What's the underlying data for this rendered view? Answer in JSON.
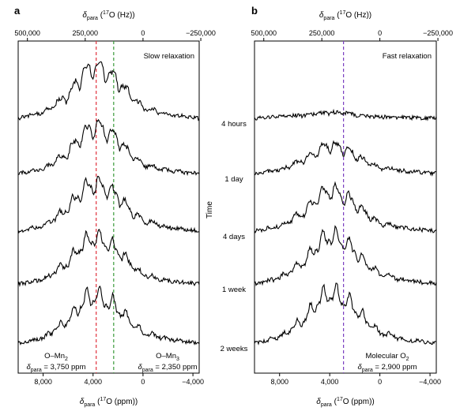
{
  "chart_data": [
    {
      "panel": "a",
      "type": "line",
      "title": "",
      "annotation": "Slow relaxation",
      "xlabel_bottom": {
        "main": "δ",
        "sub": "para",
        "sup": "17",
        "rest": "O (ppm))",
        "pre": " ("
      },
      "xlabel_top": {
        "main": "δ",
        "sub": "para",
        "sup": "17",
        "rest": "O (Hz))",
        "pre": " ("
      },
      "xlim_ppm": [
        10000,
        -4500
      ],
      "bottom_ticks": [
        {
          "v": 8000,
          "t": "8,000"
        },
        {
          "v": 4000,
          "t": "4,000"
        },
        {
          "v": 0,
          "t": "0"
        },
        {
          "v": -4000,
          "t": "−4,000"
        }
      ],
      "top_ticks": [
        {
          "v": 9260,
          "t": "500,000"
        },
        {
          "v": 4630,
          "t": "250,000"
        },
        {
          "v": 0,
          "t": "0"
        },
        {
          "v": -4630,
          "t": "−250,000"
        }
      ],
      "vlines": [
        {
          "x": 3750,
          "color": "#e0303c",
          "label": "O–Mn",
          "label_sub": "2",
          "value_text": " = 3,750 ppm",
          "align": "left"
        },
        {
          "x": 2350,
          "color": "#3a9a3a",
          "label": "O–Mn",
          "label_sub": "3",
          "value_text": " = 2,350 ppm",
          "align": "right"
        }
      ],
      "series": [
        {
          "x_ppm": [
            -4500,
            -2000,
            0,
            1000,
            2000,
            3000,
            4000,
            5000,
            6000,
            8000,
            10000
          ],
          "y": [
            0.0,
            0.05,
            0.15,
            0.3,
            0.5,
            0.62,
            0.7,
            0.55,
            0.3,
            0.08,
            0.0
          ]
        },
        {
          "x_ppm": [
            -4500,
            -2000,
            0,
            1000,
            2000,
            3000,
            4000,
            5000,
            6000,
            8000,
            10000
          ],
          "y": [
            0.0,
            0.04,
            0.12,
            0.26,
            0.45,
            0.58,
            0.62,
            0.5,
            0.28,
            0.06,
            0.0
          ]
        },
        {
          "x_ppm": [
            -4500,
            -2000,
            0,
            1000,
            2000,
            3000,
            4000,
            5000,
            6000,
            8000,
            10000
          ],
          "y": [
            0.0,
            0.05,
            0.14,
            0.28,
            0.46,
            0.58,
            0.64,
            0.52,
            0.3,
            0.07,
            0.0
          ]
        },
        {
          "x_ppm": [
            -4500,
            -2000,
            0,
            1000,
            2000,
            3000,
            4000,
            5000,
            6000,
            8000,
            10000
          ],
          "y": [
            0.0,
            0.04,
            0.13,
            0.27,
            0.44,
            0.56,
            0.62,
            0.5,
            0.28,
            0.06,
            0.0
          ]
        },
        {
          "x_ppm": [
            -4500,
            -2000,
            0,
            1000,
            2000,
            3000,
            4000,
            5000,
            6000,
            8000,
            10000
          ],
          "y": [
            0.0,
            0.05,
            0.14,
            0.28,
            0.46,
            0.58,
            0.64,
            0.52,
            0.3,
            0.07,
            0.0
          ]
        }
      ]
    },
    {
      "panel": "b",
      "type": "line",
      "title": "",
      "annotation": "Fast relaxation",
      "xlabel_bottom": {
        "main": "δ",
        "sub": "para",
        "sup": "17",
        "rest": "O (ppm))",
        "pre": " ("
      },
      "xlabel_top": {
        "main": "δ",
        "sub": "para",
        "sup": "17",
        "rest": "O (Hz))",
        "pre": " ("
      },
      "xlim_ppm": [
        10000,
        -4500
      ],
      "bottom_ticks": [
        {
          "v": 8000,
          "t": "8,000"
        },
        {
          "v": 4000,
          "t": "4,000"
        },
        {
          "v": 0,
          "t": "0"
        },
        {
          "v": -4000,
          "t": "−4,000"
        }
      ],
      "top_ticks": [
        {
          "v": 9260,
          "t": "500,000"
        },
        {
          "v": 4630,
          "t": "250,000"
        },
        {
          "v": 0,
          "t": "0"
        },
        {
          "v": -4630,
          "t": "−250,000"
        }
      ],
      "ylabel": "Time",
      "time_labels": [
        "4 hours",
        "1 day",
        "4 days",
        "1 week",
        "2 weeks"
      ],
      "vlines": [
        {
          "x": 2900,
          "color": "#7a3fc0",
          "label": "Molecular O",
          "label_sub": "2",
          "value_text": " = 2,900 ppm",
          "align": "right"
        }
      ],
      "series": [
        {
          "x_ppm": [
            -4500,
            -2000,
            0,
            1000,
            2000,
            3000,
            4000,
            5000,
            6000,
            8000,
            10000
          ],
          "y": [
            0.0,
            0.01,
            0.02,
            0.03,
            0.05,
            0.07,
            0.08,
            0.06,
            0.04,
            0.02,
            0.0
          ]
        },
        {
          "x_ppm": [
            -4500,
            -2000,
            0,
            1000,
            2000,
            3000,
            4000,
            5000,
            6000,
            8000,
            10000
          ],
          "y": [
            0.0,
            0.03,
            0.08,
            0.15,
            0.25,
            0.33,
            0.38,
            0.3,
            0.18,
            0.05,
            0.0
          ]
        },
        {
          "x_ppm": [
            -4500,
            -2000,
            0,
            1000,
            2000,
            3000,
            4000,
            5000,
            6000,
            8000,
            10000
          ],
          "y": [
            0.0,
            0.04,
            0.11,
            0.22,
            0.37,
            0.48,
            0.55,
            0.44,
            0.26,
            0.07,
            0.0
          ]
        },
        {
          "x_ppm": [
            -4500,
            -2000,
            0,
            1000,
            2000,
            3000,
            4000,
            5000,
            6000,
            8000,
            10000
          ],
          "y": [
            0.0,
            0.05,
            0.13,
            0.26,
            0.44,
            0.57,
            0.64,
            0.52,
            0.3,
            0.08,
            0.0
          ]
        },
        {
          "x_ppm": [
            -4500,
            -2000,
            0,
            1000,
            2000,
            3000,
            4000,
            5000,
            6000,
            8000,
            10000
          ],
          "y": [
            0.0,
            0.05,
            0.14,
            0.28,
            0.47,
            0.6,
            0.68,
            0.55,
            0.32,
            0.08,
            0.0
          ]
        }
      ]
    }
  ]
}
